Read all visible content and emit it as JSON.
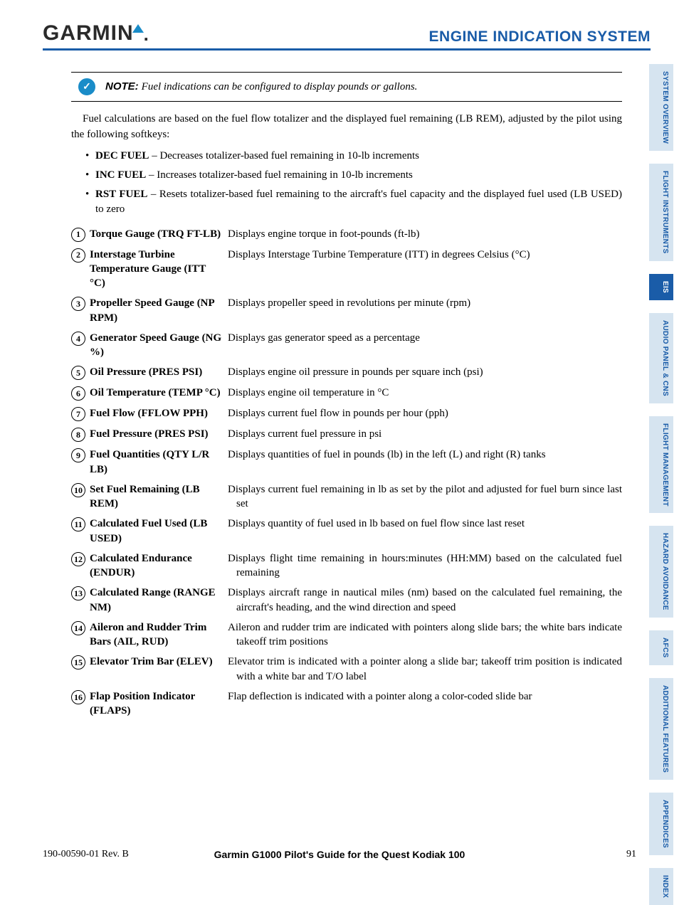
{
  "header": {
    "logo_text": "GARMIN",
    "section_title": "ENGINE INDICATION SYSTEM",
    "brand_color": "#1a5ca8",
    "accent_color": "#1a8cc8"
  },
  "note": {
    "label": "NOTE:",
    "body": "Fuel indications can be configured to display pounds or gallons."
  },
  "intro": "Fuel calculations are based on the fuel flow totalizer and the displayed fuel remaining (LB REM), adjusted by the pilot using the following softkeys:",
  "bullets": [
    {
      "term": "DEC FUEL",
      "desc": "– Decreases totalizer-based fuel remaining in 10-lb increments"
    },
    {
      "term": "INC FUEL",
      "desc": "– Increases totalizer-based fuel remaining in 10-lb increments"
    },
    {
      "term": "RST FUEL",
      "desc": "– Resets totalizer-based fuel remaining to the aircraft's fuel capacity and the displayed fuel used (LB USED) to zero"
    }
  ],
  "definitions": [
    {
      "n": "1",
      "term": "Torque Gauge (TRQ FT-LB)",
      "desc": "Displays engine torque in foot-pounds (ft-lb)"
    },
    {
      "n": "2",
      "term": "Interstage Turbine Temperature Gauge (ITT °C)",
      "desc": "Displays Interstage Turbine Temperature (ITT) in degrees Celsius (°C)"
    },
    {
      "n": "3",
      "term": "Propeller Speed Gauge (NP RPM)",
      "desc": "Displays propeller speed in revolutions per minute (rpm)"
    },
    {
      "n": "4",
      "term": "Generator Speed Gauge (NG %)",
      "desc": "Displays gas generator speed as a percentage"
    },
    {
      "n": "5",
      "term": "Oil Pressure (PRES PSI)",
      "desc": "Displays engine oil pressure in pounds per square inch (psi)"
    },
    {
      "n": "6",
      "term": "Oil Temperature (TEMP °C)",
      "desc": "Displays engine oil temperature in °C"
    },
    {
      "n": "7",
      "term": "Fuel Flow (FFLOW PPH)",
      "desc": "Displays current fuel flow in pounds per hour (pph)"
    },
    {
      "n": "8",
      "term": "Fuel Pressure (PRES PSI)",
      "desc": "Displays current fuel pressure in psi"
    },
    {
      "n": "9",
      "term": "Fuel Quantities (QTY L/R LB)",
      "desc": "Displays quantities of fuel in pounds (lb) in the left (L) and right (R) tanks"
    },
    {
      "n": "10",
      "term": "Set Fuel Remaining (LB REM)",
      "desc": "Displays current fuel remaining in lb as set by the pilot and adjusted for fuel burn since last set"
    },
    {
      "n": "11",
      "term": "Calculated Fuel Used (LB USED)",
      "desc": "Displays quantity of fuel used in lb based on fuel flow since last reset"
    },
    {
      "n": "12",
      "term": "Calculated Endurance (ENDUR)",
      "desc": "Displays flight time remaining in hours:minutes (HH:MM) based on the calculated fuel remaining"
    },
    {
      "n": "13",
      "term": "Calculated Range (RANGE NM)",
      "desc": "Displays aircraft range in nautical miles (nm) based on the calculated fuel remaining, the aircraft's heading, and the wind direction and speed"
    },
    {
      "n": "14",
      "term": "Aileron and Rudder Trim Bars (AIL, RUD)",
      "desc": "Aileron and rudder trim are indicated with pointers along slide bars; the white bars indicate takeoff trim positions"
    },
    {
      "n": "15",
      "term": "Elevator Trim Bar (ELEV)",
      "desc": "Elevator trim is indicated with a pointer along a slide bar; takeoff trim position is indicated with a white bar and T/O label"
    },
    {
      "n": "16",
      "term": "Flap Position Indicator (FLAPS)",
      "desc": "Flap deflection is indicated with a pointer along a color-coded slide bar"
    }
  ],
  "sidebar": [
    {
      "label": "SYSTEM OVERVIEW",
      "active": false
    },
    {
      "label": "FLIGHT INSTRUMENTS",
      "active": false
    },
    {
      "label": "EIS",
      "active": true
    },
    {
      "label": "AUDIO PANEL & CNS",
      "active": false
    },
    {
      "label": "FLIGHT MANAGEMENT",
      "active": false
    },
    {
      "label": "HAZARD AVOIDANCE",
      "active": false
    },
    {
      "label": "AFCS",
      "active": false
    },
    {
      "label": "ADDITIONAL FEATURES",
      "active": false
    },
    {
      "label": "APPENDICES",
      "active": false
    },
    {
      "label": "INDEX",
      "active": false
    }
  ],
  "footer": {
    "doc_id": "190-00590-01  Rev. B",
    "title": "Garmin G1000 Pilot's Guide for the Quest Kodiak 100",
    "page": "91"
  }
}
